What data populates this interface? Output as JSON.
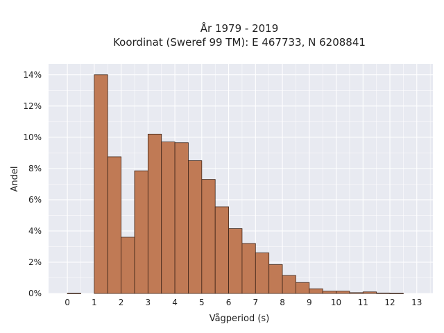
{
  "chart_data": {
    "type": "bar",
    "title": "År 1979 - 2019",
    "subtitle": "Koordinat (Sweref 99 TM): E 467733, N 6208841",
    "xlabel": "Vågperiod (s)",
    "ylabel": "Andel",
    "xlim": [
      -0.7,
      13.6
    ],
    "ylim": [
      0,
      14.7
    ],
    "x_ticks": [
      "0",
      "1",
      "2",
      "3",
      "4",
      "5",
      "6",
      "7",
      "8",
      "9",
      "10",
      "11",
      "12",
      "13"
    ],
    "y_ticks": [
      "0%",
      "2%",
      "4%",
      "6%",
      "8%",
      "10%",
      "12%",
      "14%"
    ],
    "bin_width": 0.5,
    "bin_starts": [
      0,
      0.5,
      1,
      1.5,
      2,
      2.5,
      3,
      3.5,
      4,
      4.5,
      5,
      5.5,
      6,
      6.5,
      7,
      7.5,
      8,
      8.5,
      9,
      9.5,
      10,
      10.5,
      11,
      11.5,
      12,
      12.5
    ],
    "values": [
      0.02,
      0,
      14.0,
      8.75,
      3.6,
      7.85,
      10.2,
      9.7,
      9.65,
      8.5,
      7.3,
      5.55,
      4.15,
      3.2,
      2.6,
      1.85,
      1.15,
      0.7,
      0.3,
      0.15,
      0.15,
      0.05,
      0.1,
      0.03,
      0.02,
      0
    ],
    "grid": true,
    "colors": {
      "bar_fill": "#c07a55",
      "bar_edge": "#3d2418",
      "plot_bg": "#e8eaf1",
      "grid": "#ffffff"
    }
  }
}
